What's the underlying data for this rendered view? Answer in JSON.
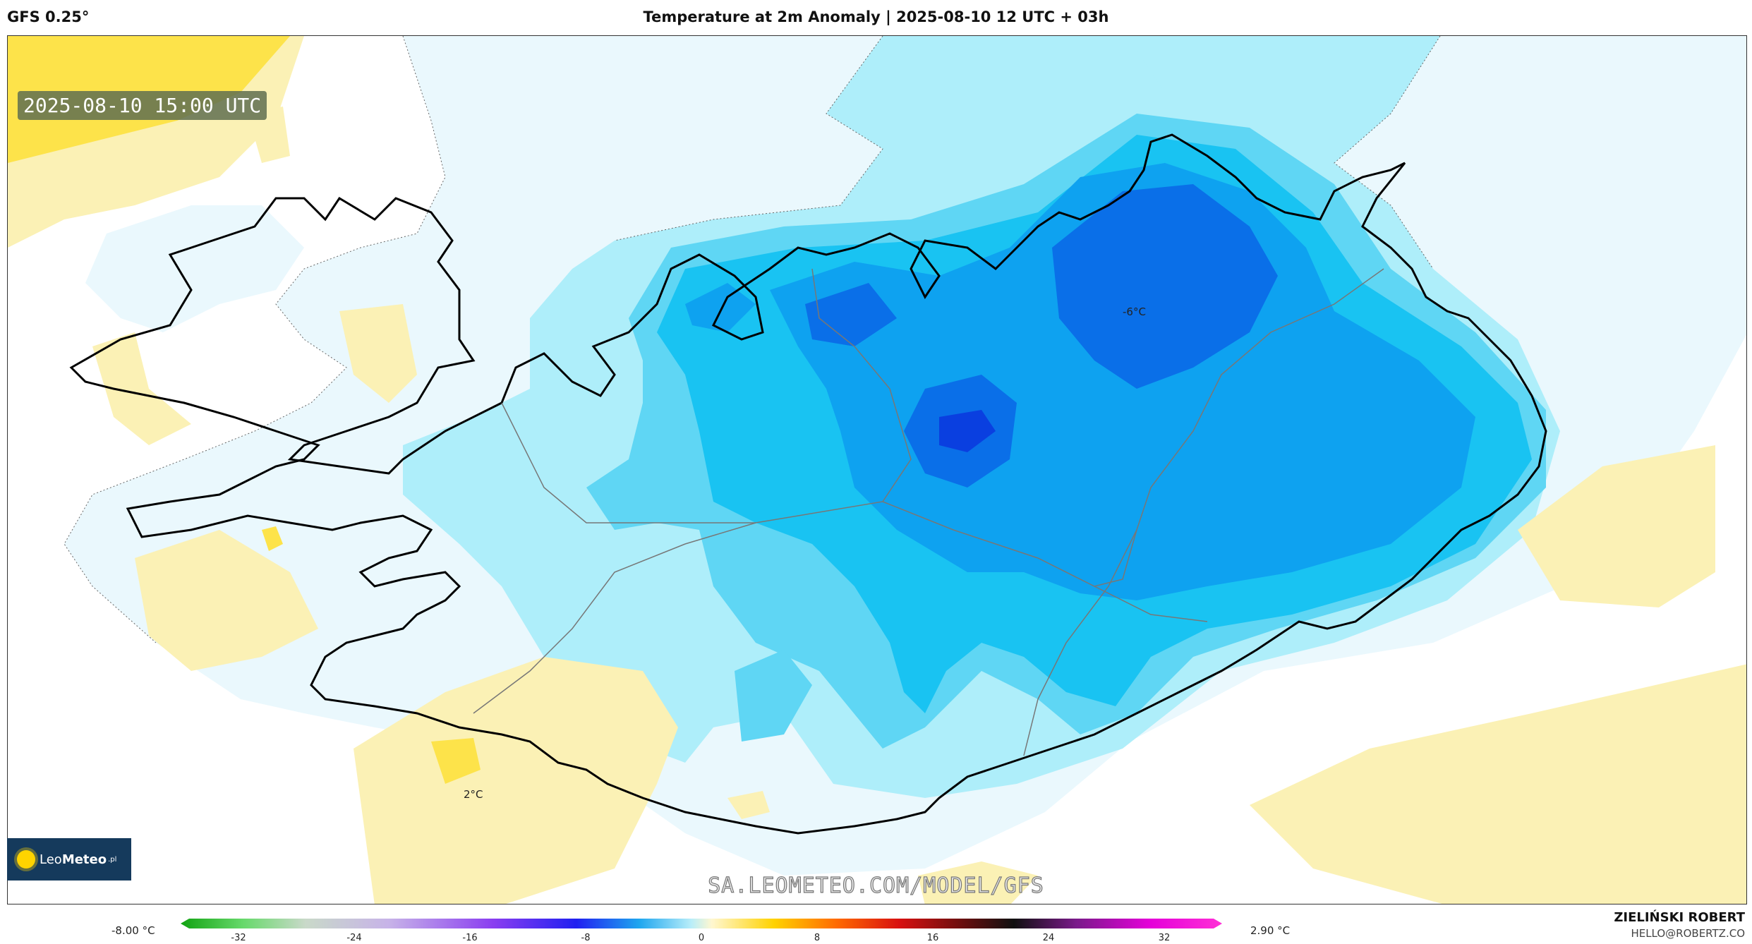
{
  "header": {
    "model": "GFS 0.25°",
    "title": "Temperature at 2m Anomaly | 2025-08-10 12 UTC + 03h"
  },
  "map": {
    "valid_time": "2025-08-10 15:00 UTC",
    "labels": {
      "cold_center": "-6°C",
      "warm_spot": "2°C"
    },
    "colors": {
      "cold_1": "#eaf8fd",
      "cold_2": "#aeeefa",
      "cold_3": "#5fd6f4",
      "cold_4": "#19c3f2",
      "cold_5": "#0ea2f0",
      "cold_6": "#0a6fe8",
      "cold_7": "#0a3fe0",
      "warm_1": "#fbf1b5",
      "warm_2": "#fde34a"
    },
    "watermark": "SA.LEOMETEO.COM/MODEL/GFS",
    "logo": {
      "name_light": "Leo",
      "name_bold": "Meteo",
      "tld": ".pl"
    }
  },
  "legend": {
    "min_label": "-8.00 °C",
    "max_label": "2.90 °C",
    "ticks": [
      "-32",
      "-24",
      "-16",
      "-8",
      "0",
      "8",
      "16",
      "24",
      "32"
    ],
    "tick_values": [
      -32,
      -24,
      -16,
      -8,
      0,
      8,
      16,
      24,
      32
    ],
    "range": [
      -36,
      36
    ]
  },
  "footer": {
    "author": "ZIELIŃSKI ROBERT",
    "email": "HELLO@ROBERTZ.CO"
  }
}
